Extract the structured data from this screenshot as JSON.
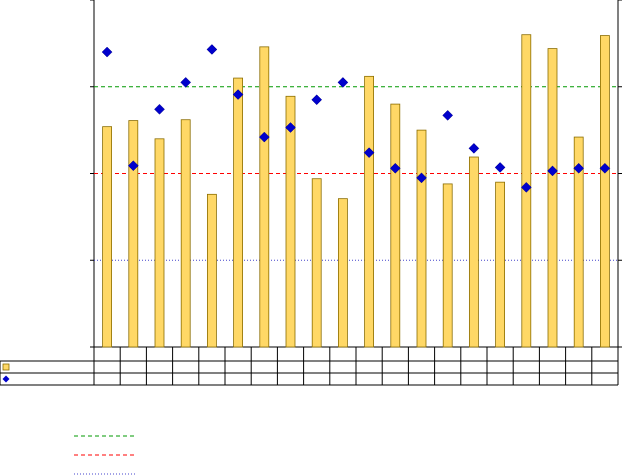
{
  "chart_data": {
    "type": "bar",
    "categories": [
      "",
      "",
      "",
      "",
      "",
      "",
      "",
      "",
      "",
      "",
      "",
      "",
      "",
      "",
      "",
      "",
      "",
      "",
      "",
      ""
    ],
    "ylim": [
      0,
      400
    ],
    "grid": false,
    "series": [
      {
        "kind": "bar",
        "axis": "left",
        "color": "#ffd866",
        "stroke": "#8b6d00",
        "values": [
          254,
          261,
          240,
          262,
          176,
          310,
          346,
          289,
          194,
          171,
          312,
          280,
          250,
          188,
          219,
          190,
          360,
          344,
          242,
          359
        ]
      },
      {
        "kind": "marker",
        "axis": "left",
        "marker": "diamond",
        "color": "#0000cc",
        "values": [
          340,
          209,
          274,
          305,
          343,
          291,
          242,
          253,
          285,
          305,
          224,
          206,
          195,
          267,
          229,
          207,
          184,
          203,
          206,
          206
        ]
      }
    ],
    "reference_lines": [
      {
        "value": 300,
        "color": "#009900",
        "style": "dashed"
      },
      {
        "value": 200,
        "color": "#ff0000",
        "style": "dashed"
      },
      {
        "value": 100,
        "color": "#4444cc",
        "style": "dotted"
      }
    ],
    "legend": {
      "placement": "bottom-left",
      "entries": [
        {
          "color": "#009900",
          "style": "dashed"
        },
        {
          "color": "#ff0000",
          "style": "dashed"
        },
        {
          "color": "#4444cc",
          "style": "dotted"
        }
      ]
    },
    "data_table_rows": [
      {
        "symbol": "bar",
        "color": "#ffd866",
        "stroke": "#8b6d00"
      },
      {
        "symbol": "diamond",
        "color": "#0000cc"
      }
    ]
  }
}
